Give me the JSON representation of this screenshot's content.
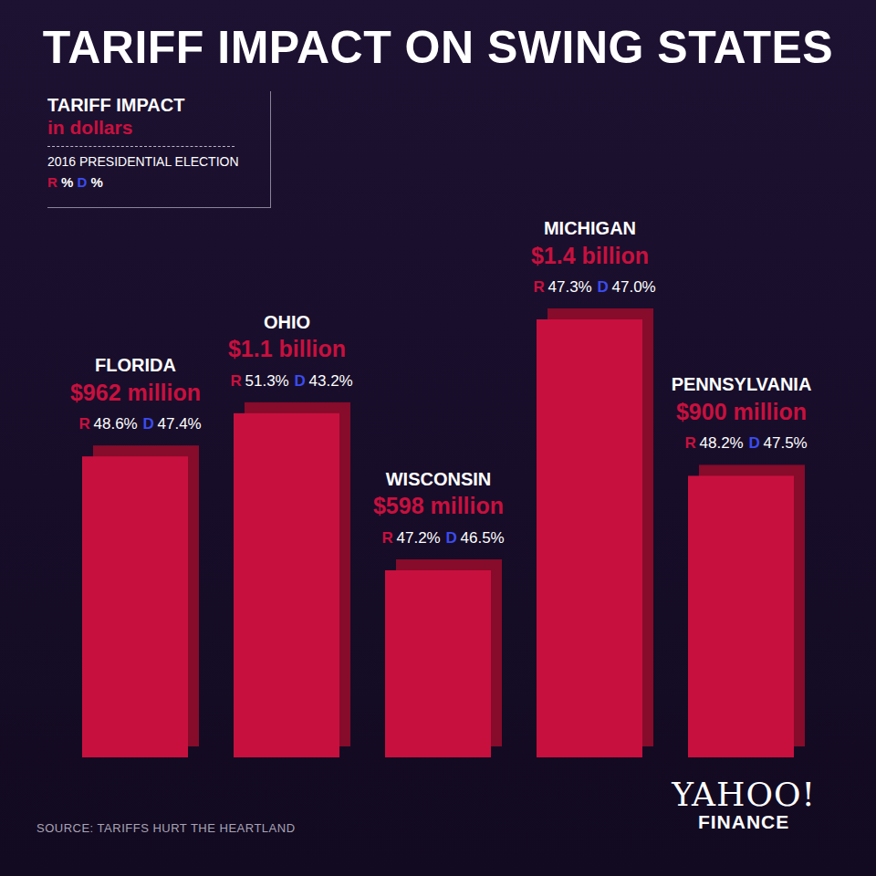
{
  "chart_data": {
    "type": "bar",
    "title": "TARIFF IMPACT ON SWING STATES",
    "key": {
      "title": "TARIFF IMPACT",
      "subtitle": "in dollars",
      "election": "2016 PRESIDENTIAL ELECTION",
      "r": "R",
      "d": "D",
      "unit": "%"
    },
    "categories": [
      "FLORIDA",
      "OHIO",
      "WISCONSIN",
      "MICHIGAN",
      "PENNSYLVANIA"
    ],
    "values": [
      962,
      1100,
      598,
      1400,
      900
    ],
    "value_labels": [
      "$962 million",
      "$1.1 billion",
      "$598 million",
      "$1.4 billion",
      "$900 million"
    ],
    "r_share_labels": [
      "48.6%",
      "51.3%",
      "47.2%",
      "47.3%",
      "48.2%"
    ],
    "d_share_labels": [
      "47.4%",
      "43.2%",
      "46.5%",
      "47.0%",
      "47.5%"
    ],
    "color": "#c8103e",
    "data_labels": true,
    "tick_labels": false,
    "source": "SOURCE: TARIFFS HURT THE HEARTLAND",
    "brand": [
      "YAHOO!",
      "FINANCE"
    ]
  }
}
